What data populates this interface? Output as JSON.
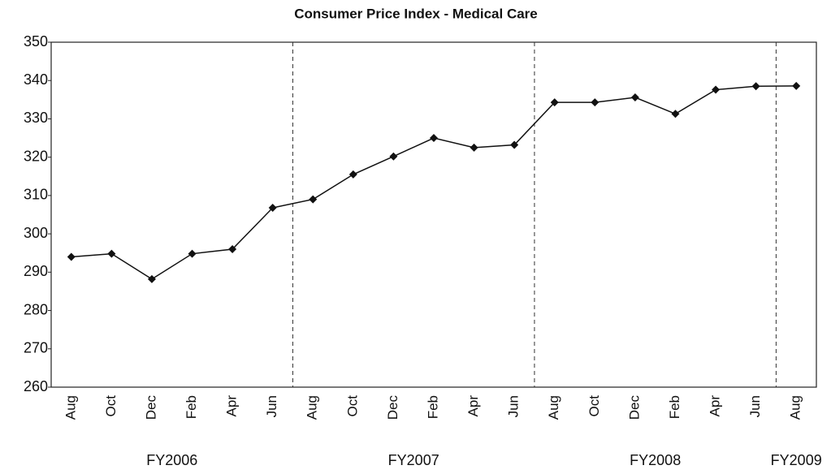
{
  "chart_data": {
    "type": "line",
    "title": "Consumer Price Index - Medical Care",
    "categories": [
      "Aug",
      "Oct",
      "Dec",
      "Feb",
      "Apr",
      "Jun",
      "Aug",
      "Oct",
      "Dec",
      "Feb",
      "Apr",
      "Jun",
      "Aug",
      "Oct",
      "Dec",
      "Feb",
      "Apr",
      "Jun",
      "Aug"
    ],
    "groups": [
      {
        "name": "FY2006",
        "start": 0,
        "end": 5
      },
      {
        "name": "FY2007",
        "start": 6,
        "end": 11
      },
      {
        "name": "FY2008",
        "start": 12,
        "end": 17
      },
      {
        "name": "FY2009",
        "start": 18,
        "end": 18
      }
    ],
    "series": [
      {
        "name": "Consumer Price Index - Medical Care",
        "color": "#111111",
        "values": [
          294,
          294.8,
          288.2,
          294.8,
          296,
          306.8,
          309,
          315.5,
          320.2,
          325,
          322.5,
          323.2,
          334.3,
          334.3,
          335.6,
          331.3,
          337.6,
          338.5,
          338.6
        ]
      }
    ],
    "ylim": [
      260,
      350
    ],
    "yticks": [
      260,
      270,
      280,
      290,
      300,
      310,
      320,
      330,
      340,
      350
    ],
    "grid": false
  }
}
